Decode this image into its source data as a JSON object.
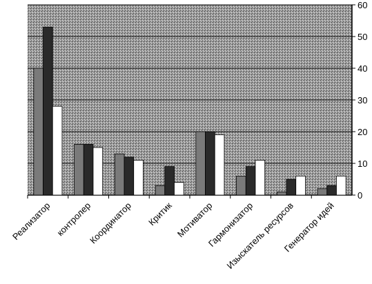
{
  "chart_data": {
    "type": "bar",
    "categories": [
      "Реализатор",
      "контролер",
      "Координатор",
      "Критик",
      "Мотиватор",
      "Гармонизатор",
      "Изыскатель ресурсов",
      "Генератор идей"
    ],
    "series": [
      {
        "color": "#7a7a7a",
        "values": [
          40,
          16,
          13,
          3,
          20,
          6,
          1,
          2
        ]
      },
      {
        "color": "#2a2a2a",
        "values": [
          53,
          16,
          12,
          9,
          20,
          9,
          5,
          3
        ]
      },
      {
        "color": "#ffffff",
        "values": [
          28,
          15,
          11,
          4,
          19,
          11,
          6,
          6
        ]
      }
    ],
    "ylim": [
      0,
      60
    ],
    "yticks": [
      0,
      10,
      20,
      30,
      40,
      50,
      60
    ],
    "grid": true
  }
}
